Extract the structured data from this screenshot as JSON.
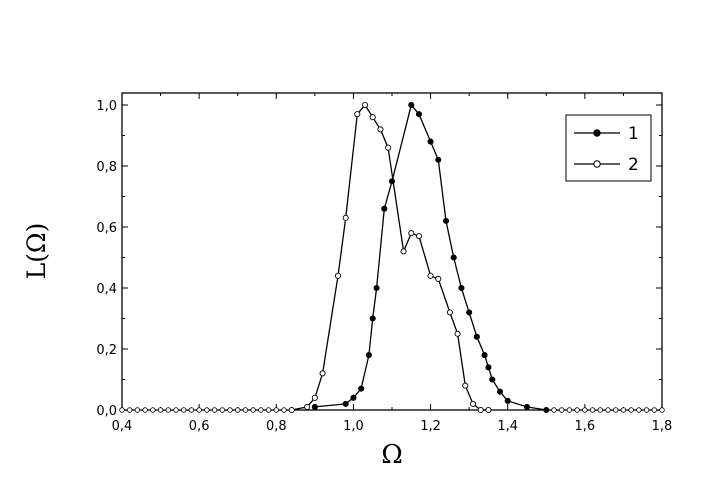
{
  "chart_data": {
    "type": "line",
    "xlabel": "Ω",
    "ylabel": "L(Ω)",
    "xlim": [
      0.4,
      1.8
    ],
    "ylim": [
      0.0,
      1.0
    ],
    "x_ticks": [
      "0,4",
      "0,6",
      "0,8",
      "1,0",
      "1,2",
      "1,4",
      "1,6",
      "1,8"
    ],
    "y_ticks": [
      "0,0",
      "0,2",
      "0,4",
      "0,6",
      "0,8",
      "1,0"
    ],
    "grid": false,
    "legend_position": "top-right",
    "series": [
      {
        "name": "1",
        "marker": "filled-circle",
        "color": "#000000",
        "x": [
          0.9,
          0.98,
          1.0,
          1.02,
          1.04,
          1.05,
          1.06,
          1.08,
          1.1,
          1.15,
          1.17,
          1.2,
          1.22,
          1.24,
          1.26,
          1.28,
          1.3,
          1.32,
          1.34,
          1.35,
          1.36,
          1.38,
          1.4,
          1.45,
          1.5
        ],
        "y": [
          0.01,
          0.02,
          0.04,
          0.07,
          0.18,
          0.3,
          0.4,
          0.66,
          0.75,
          1.0,
          0.97,
          0.88,
          0.82,
          0.62,
          0.5,
          0.4,
          0.32,
          0.24,
          0.18,
          0.14,
          0.1,
          0.06,
          0.03,
          0.01,
          0.0
        ]
      },
      {
        "name": "2",
        "marker": "open-circle",
        "color": "#000000",
        "x": [
          0.84,
          0.88,
          0.9,
          0.92,
          0.96,
          0.98,
          1.01,
          1.03,
          1.05,
          1.07,
          1.09,
          1.13,
          1.15,
          1.17,
          1.2,
          1.22,
          1.25,
          1.27,
          1.29,
          1.31,
          1.33,
          1.35
        ],
        "y": [
          0.0,
          0.01,
          0.04,
          0.12,
          0.44,
          0.63,
          0.97,
          1.0,
          0.96,
          0.92,
          0.86,
          0.52,
          0.58,
          0.57,
          0.44,
          0.43,
          0.32,
          0.25,
          0.08,
          0.02,
          0.0,
          0.0
        ]
      }
    ]
  }
}
